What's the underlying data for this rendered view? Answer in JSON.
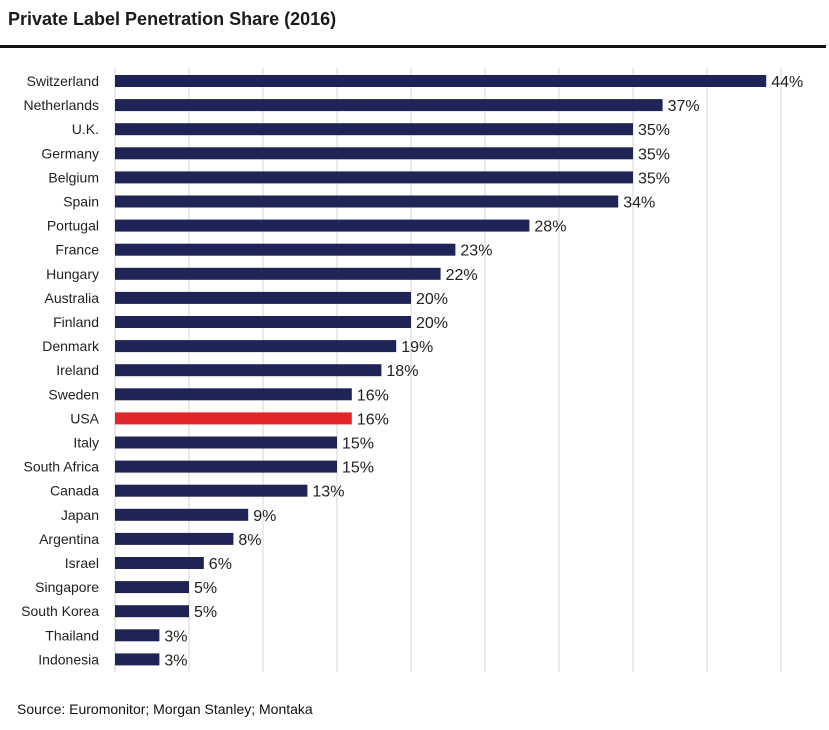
{
  "chart_data": {
    "type": "bar",
    "orientation": "horizontal",
    "title": "Private Label Penetration Share (2016)",
    "categories": [
      "Switzerland",
      "Netherlands",
      "U.K.",
      "Germany",
      "Belgium",
      "Spain",
      "Portugal",
      "France",
      "Hungary",
      "Australia",
      "Finland",
      "Denmark",
      "Ireland",
      "Sweden",
      "USA",
      "Italy",
      "South Africa",
      "Canada",
      "Japan",
      "Argentina",
      "Israel",
      "Singapore",
      "South Korea",
      "Thailand",
      "Indonesia"
    ],
    "values": [
      44,
      37,
      35,
      35,
      35,
      34,
      28,
      23,
      22,
      20,
      20,
      19,
      18,
      16,
      16,
      15,
      15,
      13,
      9,
      8,
      6,
      5,
      5,
      3,
      3
    ],
    "value_labels": [
      "44%",
      "37%",
      "35%",
      "35%",
      "35%",
      "34%",
      "28%",
      "23%",
      "22%",
      "20%",
      "20%",
      "19%",
      "18%",
      "16%",
      "16%",
      "15%",
      "15%",
      "13%",
      "9%",
      "8%",
      "6%",
      "5%",
      "5%",
      "3%",
      "3%"
    ],
    "highlight_category": "USA",
    "xlim": [
      0,
      45
    ],
    "grid": true,
    "xlabel": "",
    "ylabel": ""
  },
  "colors": {
    "bar": "#1f2456",
    "highlight": "#e0262b",
    "grid": "#d6d6d6"
  },
  "source": "Source: Euromonitor; Morgan Stanley; Montaka"
}
